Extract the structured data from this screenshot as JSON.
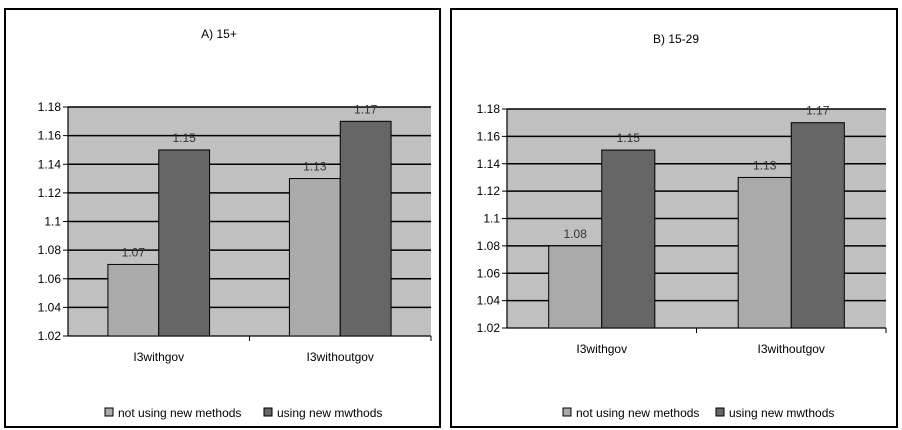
{
  "chart_data": [
    {
      "type": "bar",
      "title": "A) 15+",
      "categories": [
        "I3withgov",
        "I3withoutgov"
      ],
      "series": [
        {
          "name": "not using new methods",
          "values": [
            1.07,
            1.13
          ],
          "labels": [
            "1.07",
            "1.13"
          ]
        },
        {
          "name": "using new mwthods",
          "values": [
            1.15,
            1.17
          ],
          "labels": [
            "1.15",
            "1.17"
          ]
        }
      ],
      "ylim": [
        1.02,
        1.18
      ],
      "yticks": [
        "1.02",
        "1.04",
        "1.06",
        "1.08",
        "1.1",
        "1.12",
        "1.14",
        "1.16",
        "1.18"
      ],
      "grid": true,
      "legend": "bottom"
    },
    {
      "type": "bar",
      "title": "B) 15-29",
      "categories": [
        "I3withgov",
        "I3withoutgov"
      ],
      "series": [
        {
          "name": "not using new methods",
          "values": [
            1.08,
            1.13
          ],
          "labels": [
            "1.08",
            "1.13"
          ]
        },
        {
          "name": "using new mwthods",
          "values": [
            1.15,
            1.17
          ],
          "labels": [
            "1.15",
            "1.17"
          ]
        }
      ],
      "ylim": [
        1.02,
        1.18
      ],
      "yticks": [
        "1.02",
        "1.04",
        "1.06",
        "1.08",
        "1.1",
        "1.12",
        "1.14",
        "1.16",
        "1.18"
      ],
      "grid": true,
      "legend": "bottom"
    }
  ],
  "colors": {
    "plot_bg": "#c0c0c0",
    "grid": "#000000",
    "series": [
      "#aaaaaa",
      "#666666"
    ]
  }
}
